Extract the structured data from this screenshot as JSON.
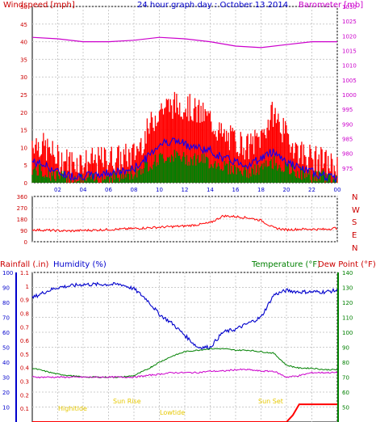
{
  "chart_data": [
    {
      "type": "line",
      "title": "24 hour graph day : October 13 2014",
      "left_label": "Windspeed [mph]",
      "right_label": "Barometer [mb]",
      "colors": {
        "wind": "#ff0000",
        "wind_avg": "#0000ff",
        "gust_low": "#008000",
        "barometer": "#cc00cc"
      },
      "grid": true,
      "x_ticks": [
        "02",
        "04",
        "06",
        "08",
        "10",
        "12",
        "14",
        "16",
        "18",
        "20",
        "22",
        "00"
      ],
      "y_left": {
        "range": [
          0,
          50
        ],
        "ticks": [
          0,
          5,
          10,
          15,
          20,
          25,
          30,
          35,
          40,
          45,
          50
        ]
      },
      "y_right": {
        "range": [
          970,
          1030
        ],
        "ticks": [
          975,
          980,
          985,
          990,
          995,
          1000,
          1005,
          1010,
          1015,
          1020,
          1025,
          1030
        ]
      },
      "series": [
        {
          "name": "Windspeed gust",
          "x": [
            0,
            1,
            2,
            3,
            4,
            5,
            6,
            7,
            8,
            9,
            10,
            11,
            12,
            13,
            14,
            15,
            16,
            17,
            18,
            19,
            20,
            21,
            22,
            23,
            24
          ],
          "values": [
            12,
            10,
            7,
            6,
            6,
            6,
            7,
            7,
            8,
            14,
            21,
            22,
            22,
            20,
            18,
            13,
            12,
            10,
            13,
            20,
            13,
            9,
            7,
            6,
            4
          ]
        },
        {
          "name": "Windspeed average",
          "x": [
            0,
            1,
            2,
            3,
            4,
            5,
            6,
            7,
            8,
            9,
            10,
            11,
            12,
            13,
            14,
            15,
            16,
            17,
            18,
            19,
            20,
            21,
            22,
            23,
            24
          ],
          "values": [
            6,
            5,
            3,
            2,
            2,
            2,
            3,
            3,
            4,
            7,
            11,
            12,
            11,
            10,
            9,
            7,
            6,
            5,
            7,
            9,
            6,
            4,
            3,
            2,
            1
          ]
        },
        {
          "name": "Windspeed low",
          "x": [
            0,
            1,
            2,
            3,
            4,
            5,
            6,
            7,
            8,
            9,
            10,
            11,
            12,
            13,
            14,
            15,
            16,
            17,
            18,
            19,
            20,
            21,
            22,
            23,
            24
          ],
          "values": [
            3,
            2,
            1,
            0,
            0,
            0,
            1,
            1,
            2,
            4,
            6,
            7,
            6,
            6,
            5,
            4,
            3,
            2,
            3,
            5,
            3,
            2,
            1,
            1,
            0
          ]
        },
        {
          "name": "Barometer",
          "x": [
            0,
            2,
            4,
            6,
            8,
            10,
            12,
            14,
            16,
            18,
            20,
            22,
            24
          ],
          "values": [
            1019.5,
            1019,
            1018,
            1018,
            1018.5,
            1019.5,
            1019,
            1018,
            1016.5,
            1016,
            1017,
            1018,
            1018
          ]
        }
      ]
    },
    {
      "type": "line",
      "right_labels": [
        "N",
        "W",
        "S",
        "E",
        "N"
      ],
      "y_left": {
        "range": [
          0,
          360
        ],
        "ticks": [
          0,
          90,
          180,
          270,
          360
        ]
      },
      "series": [
        {
          "name": "Wind direction",
          "x": [
            0,
            1,
            2,
            3,
            4,
            5,
            6,
            7,
            8,
            9,
            10,
            11,
            12,
            13,
            14,
            15,
            16,
            17,
            18,
            19,
            20,
            21,
            22,
            23,
            24
          ],
          "values": [
            95,
            92,
            88,
            85,
            90,
            93,
            97,
            100,
            105,
            110,
            115,
            120,
            125,
            135,
            150,
            205,
            200,
            190,
            170,
            110,
            95,
            100,
            100,
            98,
            110
          ]
        }
      ]
    },
    {
      "type": "line",
      "rain_label": "Rainfall (.in)",
      "humidity_label": "Humidity (%)",
      "temp_label": "Temperature (°F)",
      "dew_label": "Dew Point (°F)",
      "y_rain": {
        "range": [
          0,
          1.1
        ],
        "ticks": [
          0.1,
          0.2,
          0.3,
          0.4,
          0.5,
          0.6,
          0.7,
          0.8,
          0.9,
          1,
          1.1
        ]
      },
      "y_humidity": {
        "range": [
          0,
          100
        ],
        "ticks": [
          0,
          10,
          20,
          30,
          40,
          50,
          60,
          70,
          80,
          90,
          100
        ]
      },
      "y_temp": {
        "range": [
          40,
          140
        ],
        "ticks": [
          40,
          50,
          60,
          70,
          80,
          90,
          100,
          110,
          120,
          130,
          140
        ]
      },
      "annotations": [
        "Highitide",
        "Sun Rise",
        "Lowtide",
        "Sun Set"
      ],
      "series": [
        {
          "name": "Humidity",
          "x": [
            0,
            1,
            2,
            3,
            4,
            5,
            6,
            7,
            8,
            9,
            10,
            11,
            12,
            13,
            14,
            15,
            16,
            17,
            18,
            19,
            20,
            21,
            22,
            23,
            24
          ],
          "values": [
            83,
            87,
            90,
            91,
            92,
            92,
            92,
            92,
            89,
            82,
            72,
            66,
            58,
            50,
            50,
            60,
            62,
            66,
            70,
            85,
            88,
            87,
            87,
            87,
            88
          ]
        },
        {
          "name": "Temperature",
          "x": [
            0,
            1,
            2,
            3,
            4,
            5,
            6,
            7,
            8,
            9,
            10,
            11,
            12,
            13,
            14,
            15,
            16,
            17,
            18,
            19,
            20,
            21,
            22,
            23,
            24
          ],
          "values": [
            76,
            74,
            72,
            71,
            70,
            70,
            70,
            70,
            71,
            75,
            80,
            84,
            87,
            88,
            89,
            89,
            88,
            88,
            87,
            86,
            78,
            76,
            76,
            75,
            75
          ]
        },
        {
          "name": "Dew Point",
          "x": [
            0,
            1,
            2,
            3,
            4,
            5,
            6,
            7,
            8,
            9,
            10,
            11,
            12,
            13,
            14,
            15,
            16,
            17,
            18,
            19,
            20,
            21,
            22,
            23,
            24
          ],
          "values": [
            70,
            70,
            70,
            70,
            70,
            70,
            70,
            70,
            70,
            71,
            72,
            73,
            73,
            73,
            74,
            74,
            75,
            75,
            74,
            74,
            70,
            71,
            73,
            73,
            73
          ]
        },
        {
          "name": "Rainfall",
          "x": [
            0,
            20,
            20.5,
            21,
            22,
            24
          ],
          "values": [
            0,
            0,
            0.05,
            0.13,
            0.13,
            0.13
          ]
        }
      ]
    }
  ]
}
